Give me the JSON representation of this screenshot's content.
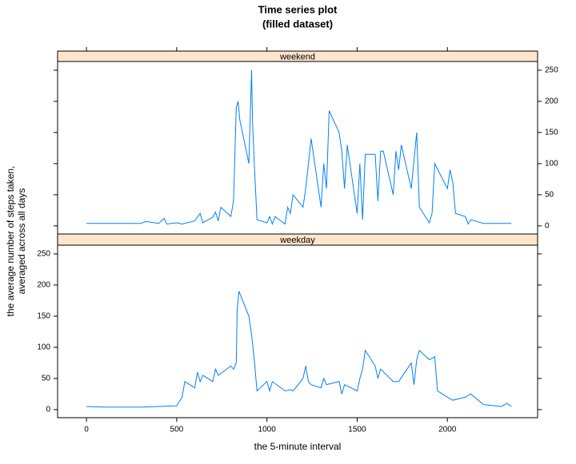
{
  "chart_data": {
    "type": "line",
    "title": "Time series plot",
    "subtitle": "(filled dataset)",
    "x_label": "the 5-minute interval",
    "y_label": [
      "the average number of steps taken,",
      "averaged across all days"
    ],
    "xlim": [
      -160,
      2500
    ],
    "xticks": [
      0,
      500,
      1000,
      1500,
      2000
    ],
    "ylim": [
      -13,
      264
    ],
    "yticks": [
      0,
      50,
      100,
      150,
      200,
      250
    ],
    "strip_color": "#ffe5cc",
    "series": [
      {
        "name": "weekend",
        "color": "#0080ff",
        "x": [
          0,
          300,
          330,
          400,
          430,
          445,
          500,
          530,
          600,
          630,
          645,
          700,
          715,
          730,
          745,
          800,
          815,
          830,
          840,
          850,
          900,
          915,
          920,
          930,
          945,
          1000,
          1015,
          1030,
          1045,
          1100,
          1115,
          1130,
          1145,
          1200,
          1215,
          1230,
          1245,
          1300,
          1315,
          1330,
          1345,
          1400,
          1415,
          1430,
          1445,
          1500,
          1515,
          1530,
          1545,
          1600,
          1615,
          1630,
          1645,
          1700,
          1715,
          1730,
          1745,
          1800,
          1830,
          1845,
          1900,
          1915,
          1930,
          2000,
          2015,
          2030,
          2045,
          2100,
          2115,
          2130,
          2200,
          2355
        ],
        "values": [
          4,
          4,
          7,
          4,
          12,
          3,
          5,
          3,
          8,
          20,
          5,
          14,
          22,
          8,
          30,
          15,
          40,
          190,
          200,
          170,
          100,
          250,
          170,
          100,
          10,
          5,
          15,
          3,
          15,
          3,
          30,
          20,
          50,
          30,
          60,
          100,
          140,
          30,
          100,
          60,
          185,
          150,
          120,
          60,
          130,
          20,
          100,
          10,
          115,
          115,
          40,
          120,
          120,
          50,
          120,
          90,
          130,
          60,
          150,
          30,
          5,
          20,
          100,
          60,
          90,
          70,
          20,
          15,
          3,
          10,
          4,
          4
        ]
      },
      {
        "name": "weekday",
        "color": "#0080ff",
        "x": [
          0,
          100,
          300,
          400,
          500,
          530,
          545,
          600,
          615,
          630,
          645,
          700,
          715,
          730,
          800,
          815,
          830,
          835,
          845,
          900,
          915,
          930,
          945,
          1000,
          1015,
          1030,
          1100,
          1130,
          1145,
          1200,
          1215,
          1230,
          1245,
          1300,
          1315,
          1330,
          1400,
          1415,
          1430,
          1500,
          1515,
          1530,
          1545,
          1600,
          1615,
          1630,
          1700,
          1730,
          1800,
          1815,
          1830,
          1845,
          1900,
          1930,
          1945,
          2000,
          2030,
          2100,
          2130,
          2200,
          2300,
          2330,
          2355
        ],
        "values": [
          5,
          4,
          4,
          5,
          6,
          20,
          45,
          35,
          60,
          45,
          55,
          45,
          65,
          55,
          70,
          65,
          75,
          160,
          190,
          150,
          120,
          80,
          30,
          45,
          30,
          45,
          30,
          32,
          30,
          50,
          70,
          45,
          40,
          35,
          50,
          40,
          45,
          25,
          40,
          30,
          50,
          65,
          95,
          70,
          50,
          65,
          45,
          45,
          75,
          40,
          80,
          95,
          80,
          85,
          30,
          20,
          15,
          20,
          25,
          8,
          5,
          10,
          5
        ]
      }
    ]
  }
}
